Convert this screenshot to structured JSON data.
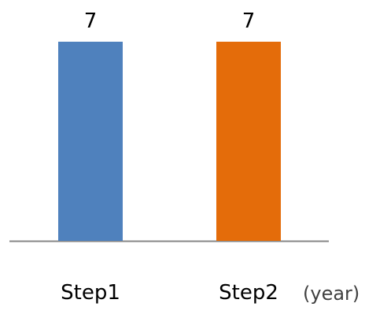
{
  "chart_data": {
    "type": "bar",
    "categories": [
      "Step1",
      "Step2"
    ],
    "values": [
      7,
      7
    ],
    "data_labels": [
      "7",
      "7"
    ],
    "colors": [
      "#4f81bd",
      "#e46c0a"
    ],
    "xlabel": "(year)",
    "ylabel": "",
    "ylim": [
      0,
      7
    ],
    "grid": false,
    "legend": "none"
  }
}
